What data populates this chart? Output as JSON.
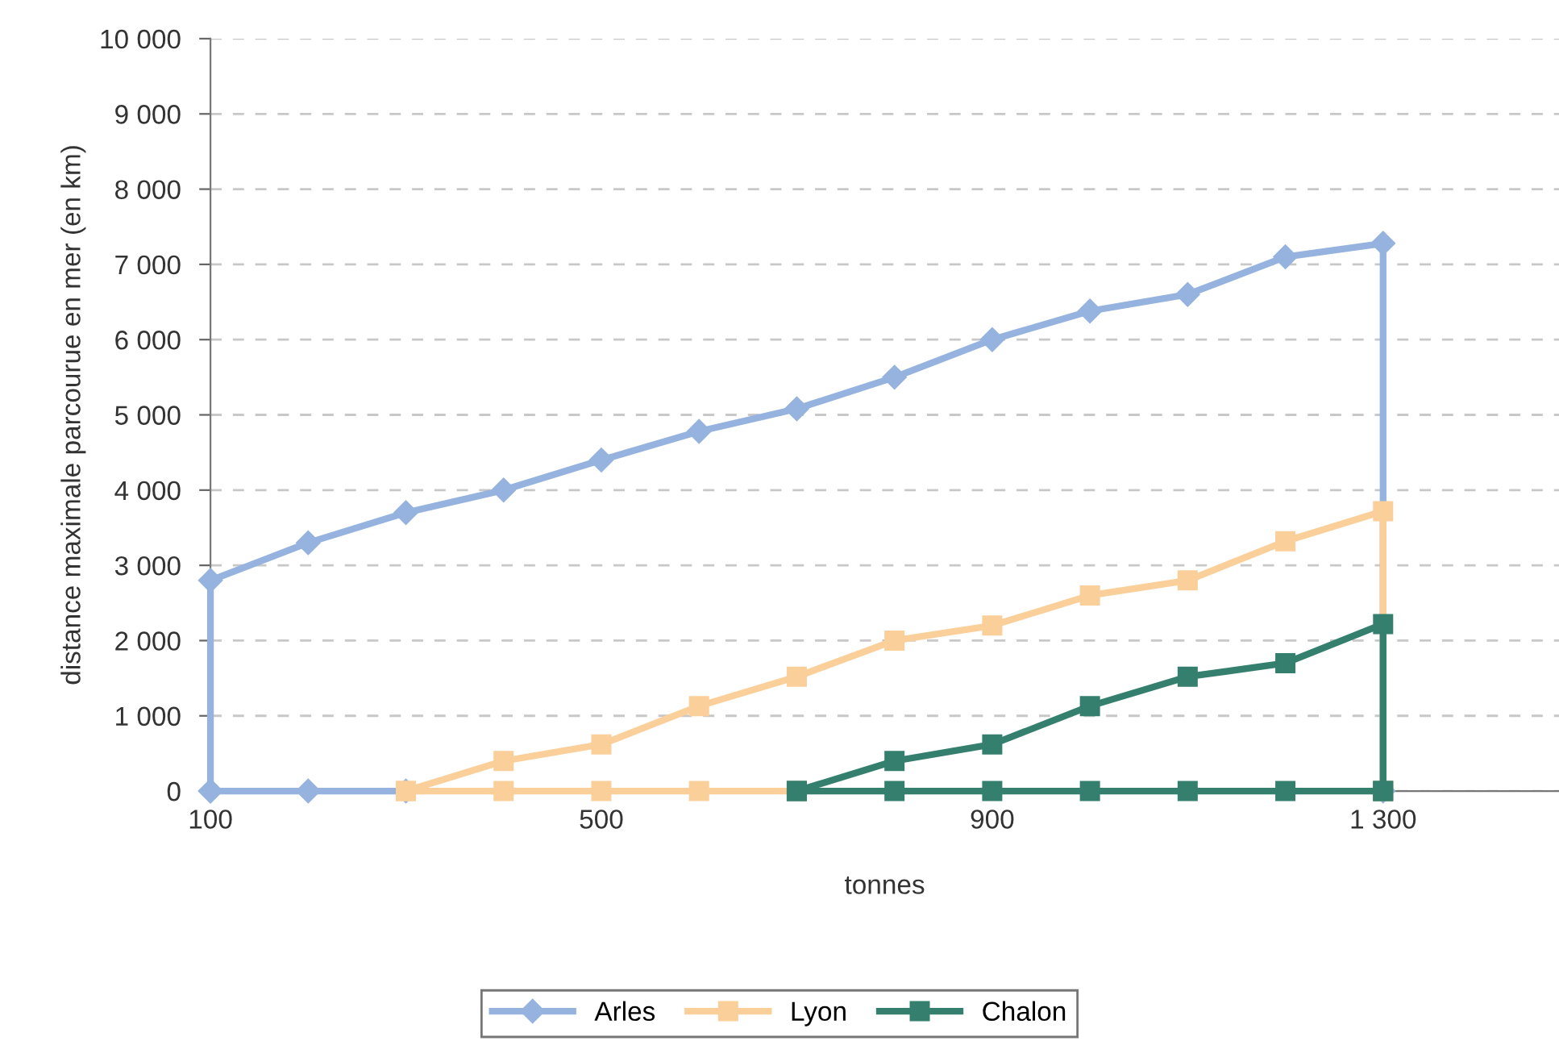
{
  "chart_data": {
    "type": "line",
    "xlabel": "tonnes",
    "ylabel": "distance maximale parcourue en mer (en km)",
    "xlim": [
      100,
      1480
    ],
    "xticks": [
      100,
      500,
      900,
      {
        "value": 1300,
        "label": "1 300"
      }
    ],
    "ylim": [
      0,
      10000
    ],
    "yticks": [
      0,
      {
        "value": 1000,
        "label": "1 000"
      },
      {
        "value": 2000,
        "label": "2 000"
      },
      {
        "value": 3000,
        "label": "3 000"
      },
      {
        "value": 4000,
        "label": "4 000"
      },
      {
        "value": 5000,
        "label": "5 000"
      },
      {
        "value": 6000,
        "label": "6 000"
      },
      {
        "value": 7000,
        "label": "7 000"
      },
      {
        "value": 8000,
        "label": "8 000"
      },
      {
        "value": 9000,
        "label": "9 000"
      },
      {
        "value": 10000,
        "label": "10 000"
      }
    ],
    "grid": "y",
    "legend": "bottom",
    "series": [
      {
        "name": "Arles",
        "color": "#95b3de",
        "marker": "diamond",
        "x": [
          100,
          100,
          200,
          300,
          400,
          500,
          600,
          700,
          800,
          900,
          1000,
          1100,
          1200,
          1300,
          1300
        ],
        "values": [
          0,
          2800,
          3300,
          3700,
          4000,
          4400,
          4780,
          5080,
          5500,
          6000,
          6380,
          6600,
          7100,
          7280,
          0
        ]
      },
      {
        "color": "#95b3de",
        "marker": "diamond",
        "x": [
          100,
          200,
          300
        ],
        "values": [
          0,
          0,
          0
        ]
      },
      {
        "name": "Lyon",
        "color": "#fbcf9a",
        "marker": "square",
        "x": [
          300,
          400,
          500,
          600,
          700,
          800,
          900,
          1000,
          1100,
          1200,
          1300,
          1300
        ],
        "values": [
          0,
          400,
          620,
          1130,
          1520,
          2000,
          2200,
          2600,
          2800,
          3320,
          3720,
          0
        ]
      },
      {
        "color": "#fbcf9a",
        "marker": "square",
        "x": [
          300,
          400,
          500,
          600,
          700
        ],
        "values": [
          0,
          0,
          0,
          0,
          0
        ]
      },
      {
        "name": "Chalon",
        "color": "#357f6f",
        "marker": "square",
        "x": [
          700,
          800,
          900,
          1000,
          1100,
          1200,
          1300,
          1300
        ],
        "values": [
          0,
          400,
          620,
          1130,
          1520,
          1700,
          2220,
          0
        ]
      },
      {
        "color": "#357f6f",
        "marker": "square",
        "x": [
          700,
          800,
          900,
          1000,
          1100,
          1200,
          1300
        ],
        "values": [
          0,
          0,
          0,
          0,
          0,
          0,
          0
        ]
      }
    ]
  }
}
